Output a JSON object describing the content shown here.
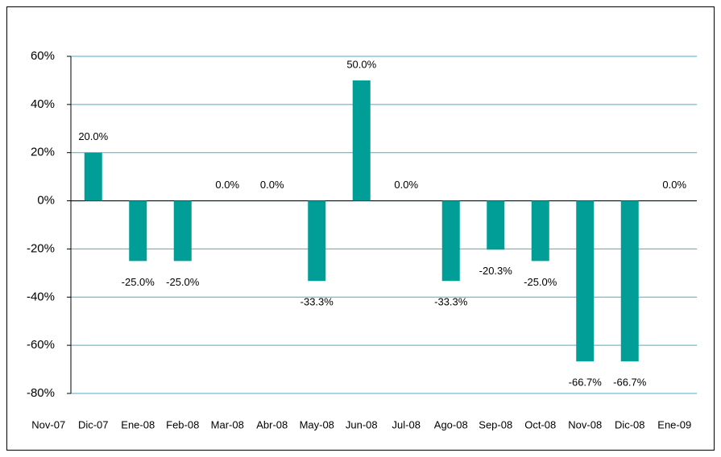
{
  "chart_data": {
    "type": "bar",
    "categories": [
      "Nov-07",
      "Dic-07",
      "Ene-08",
      "Feb-08",
      "Mar-08",
      "Abr-08",
      "May-08",
      "Jun-08",
      "Jul-08",
      "Ago-08",
      "Sep-08",
      "Oct-08",
      "Nov-08",
      "Dic-08",
      "Ene-09"
    ],
    "values": [
      null,
      20.0,
      -25.0,
      -25.0,
      0.0,
      0.0,
      -33.3,
      50.0,
      0.0,
      -33.3,
      -20.3,
      -25.0,
      -66.7,
      -66.7,
      0.0
    ],
    "value_labels": [
      null,
      "20.0%",
      "-25.0%",
      "-25.0%",
      "0.0%",
      "0.0%",
      "-33.3%",
      "50.0%",
      "0.0%",
      "-33.3%",
      "-20.3%",
      "-25.0%",
      "-66.7%",
      "-66.7%",
      "0.0%"
    ],
    "color": "#009e96",
    "ylim": [
      -80,
      60
    ],
    "yticks": [
      {
        "value": -80,
        "label": "-80%"
      },
      {
        "value": -60,
        "label": "-60%"
      },
      {
        "value": -40,
        "label": "-40%"
      },
      {
        "value": -20,
        "label": "-20%"
      },
      {
        "value": 0,
        "label": "0%"
      },
      {
        "value": 20,
        "label": "20%"
      },
      {
        "value": 40,
        "label": "40%"
      },
      {
        "value": 60,
        "label": "60%"
      }
    ],
    "grid": true
  }
}
